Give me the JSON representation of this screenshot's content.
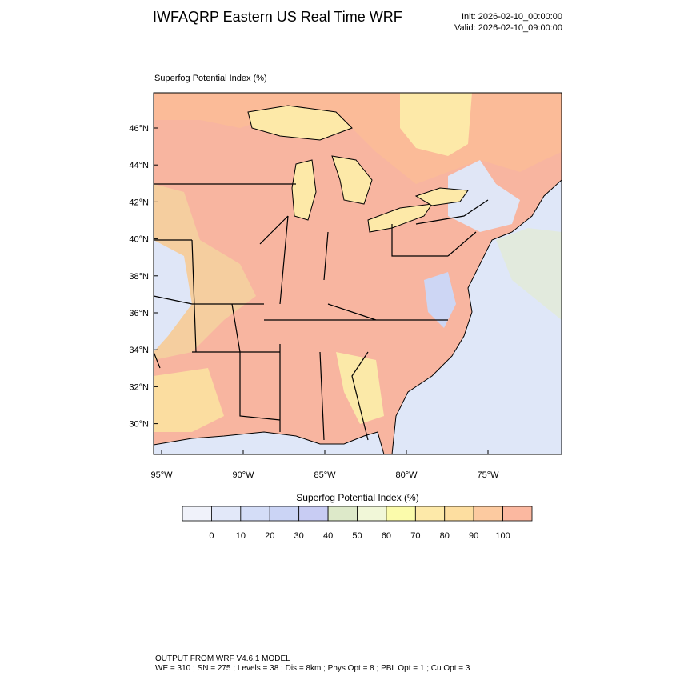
{
  "header": {
    "title": "IWFAQRP Eastern US Real Time WRF",
    "init": "Init: 2026-02-10_00:00:00",
    "valid": "Valid: 2026-02-10_09:00:00"
  },
  "map": {
    "label": "Superfog Potential Index   (%)",
    "lat_ticks": [
      "46°N",
      "44°N",
      "42°N",
      "40°N",
      "38°N",
      "36°N",
      "34°N",
      "32°N",
      "30°N"
    ],
    "lon_ticks": [
      "95°W",
      "90°W",
      "85°W",
      "80°W",
      "75°W"
    ]
  },
  "colorbar": {
    "title": "Superfog Potential Index  (%)",
    "colors": [
      "#f0f2fa",
      "#e2e8f9",
      "#d4ddf7",
      "#cbd4f5",
      "#c8ccf3",
      "#dde9c9",
      "#f1f7d8",
      "#fbfbab",
      "#fde9a9",
      "#fddea0",
      "#fccaa0",
      "#fbb8a0"
    ],
    "levels": [
      0,
      10,
      20,
      30,
      40,
      50,
      60,
      70,
      80,
      90,
      100
    ]
  },
  "footer": {
    "line1": "OUTPUT FROM WRF V4.6.1 MODEL",
    "line2": "WE = 310 ; SN = 275 ; Levels = 38 ; Dis = 8km ; Phys Opt = 8 ; PBL Opt = 1 ; Cu Opt = 3"
  }
}
